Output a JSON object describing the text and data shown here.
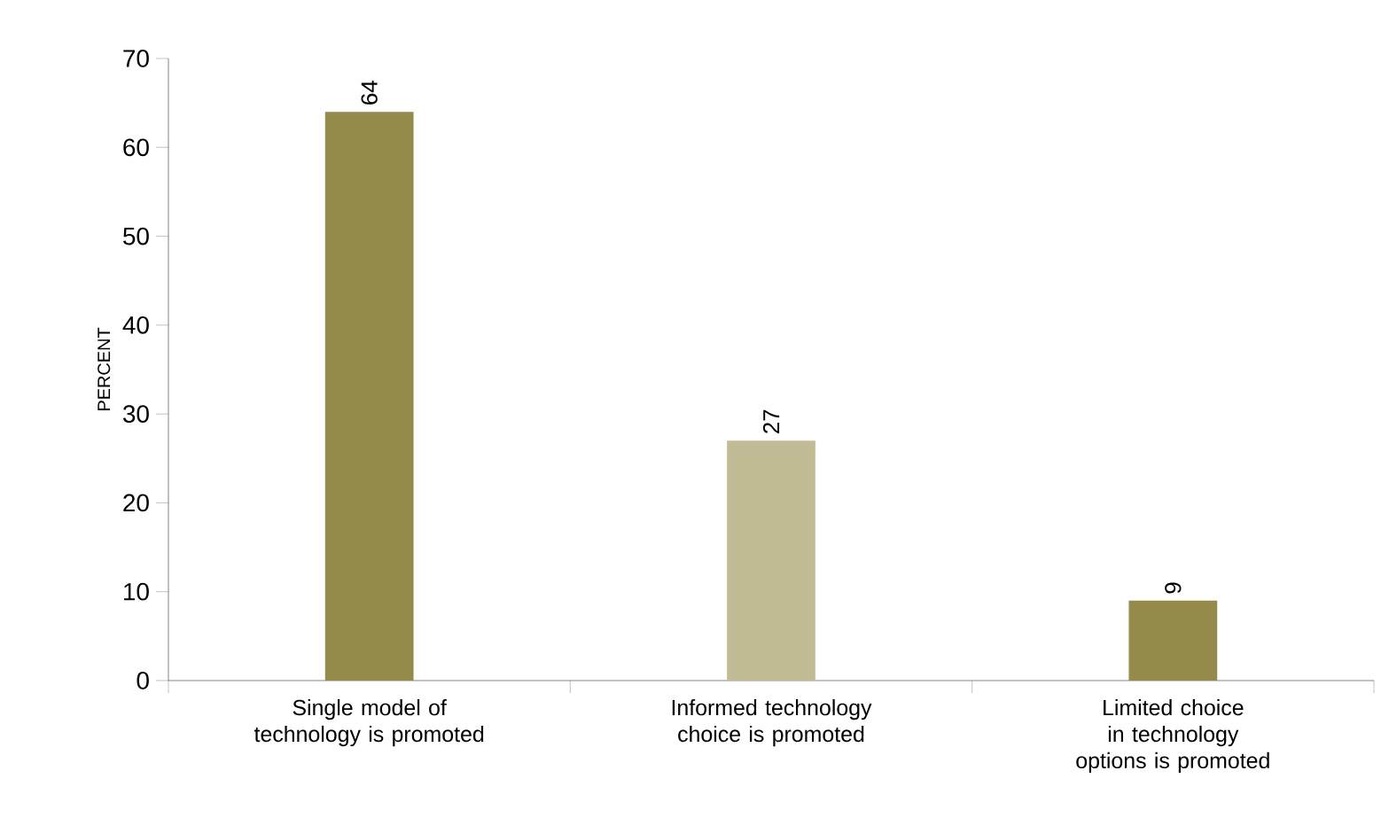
{
  "chart_data": {
    "type": "bar",
    "ylabel": "PERCENT",
    "categories": [
      "Single model of technology is promoted",
      "Informed technology choice is promoted",
      "Limited choice in technology options is promoted"
    ],
    "values": [
      64,
      27,
      9
    ],
    "colors": [
      "#948a4a",
      "#c2bc96",
      "#948a4a"
    ],
    "ylim": [
      0,
      70
    ],
    "yticks": [
      0,
      10,
      20,
      30,
      40,
      50,
      60,
      70
    ],
    "data_labels": true
  }
}
